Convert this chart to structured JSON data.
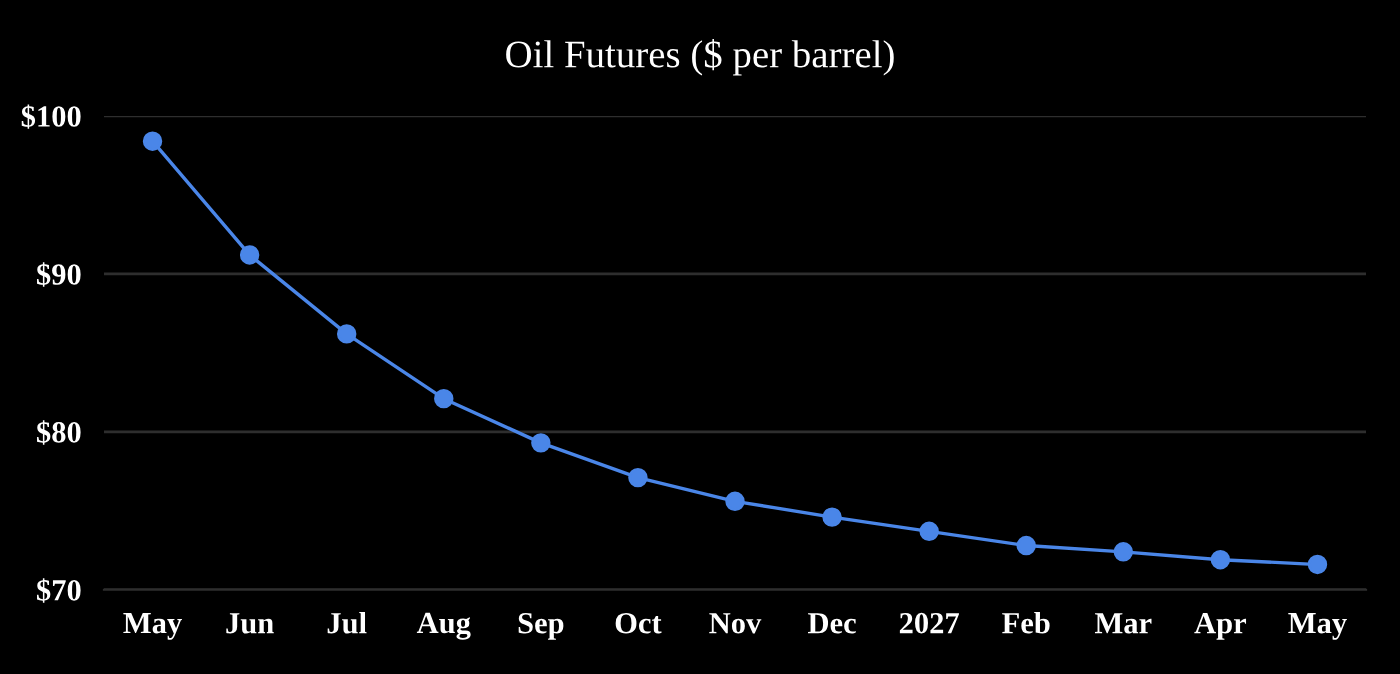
{
  "chart_data": {
    "type": "line",
    "title": "Oil Futures ($ per barrel)",
    "categories": [
      "May",
      "Jun",
      "Jul",
      "Aug",
      "Sep",
      "Oct",
      "Nov",
      "Dec",
      "2027",
      "Feb",
      "Mar",
      "Apr",
      "May"
    ],
    "series": [
      {
        "color": "#4a86e8",
        "values": [
          98.4,
          91.2,
          86.2,
          82.1,
          79.3,
          77.1,
          75.6,
          74.6,
          73.7,
          72.8,
          72.4,
          71.9,
          71.6
        ]
      }
    ],
    "ylim": [
      70,
      100
    ],
    "yticks": [
      {
        "value": 70,
        "label": "$70"
      },
      {
        "value": 80,
        "label": "$80"
      },
      {
        "value": 90,
        "label": "$90"
      },
      {
        "value": 100,
        "label": "$100"
      }
    ],
    "grid": "y",
    "marker": "circle",
    "line_style": "solid",
    "legend": false
  }
}
